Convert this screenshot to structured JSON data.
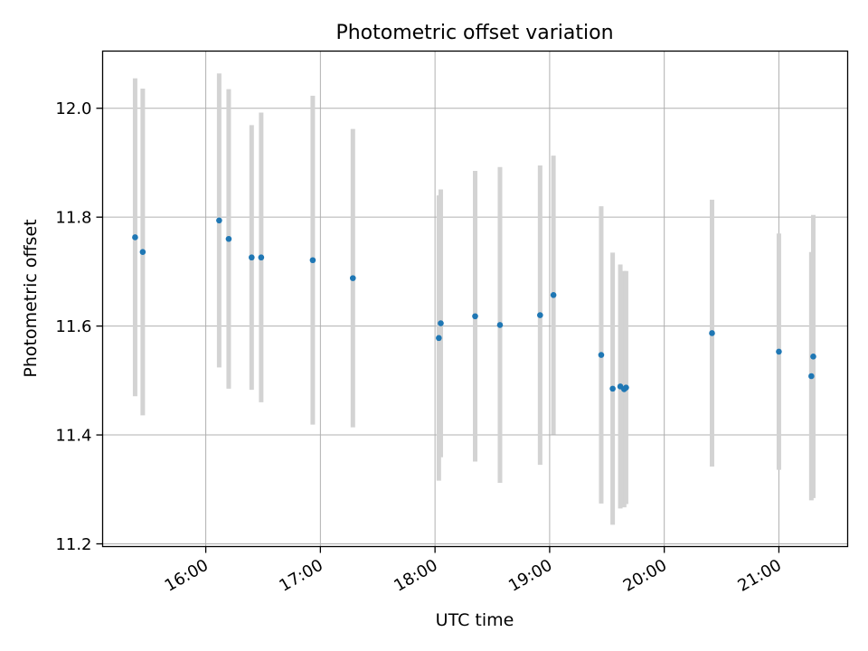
{
  "chart_data": {
    "type": "scatter",
    "title": "Photometric offset variation",
    "xlabel": "UTC time",
    "ylabel": "Photometric offset",
    "x_tick_labels": [
      "16:00",
      "17:00",
      "18:00",
      "19:00",
      "20:00",
      "21:00"
    ],
    "x_ticks": [
      "16:00",
      "17:00",
      "18:00",
      "19:00",
      "20:00",
      "21:00"
    ],
    "xlim": [
      "15:06",
      "21:36"
    ],
    "y_ticks": [
      11.2,
      11.4,
      11.6,
      11.8,
      12.0
    ],
    "y_tick_labels": [
      "11.2",
      "11.4",
      "11.6",
      "11.8",
      "12.0"
    ],
    "ylim": [
      11.195,
      12.105
    ],
    "grid": true,
    "colors": {
      "points": "#1f77b4",
      "errorbars": "#d3d3d3",
      "grid": "#b0b0b0"
    },
    "points": [
      {
        "x": "15:23",
        "y": 11.763,
        "err": 0.292
      },
      {
        "x": "15:27",
        "y": 11.736,
        "err": 0.3
      },
      {
        "x": "16:07",
        "y": 11.794,
        "err": 0.27
      },
      {
        "x": "16:12",
        "y": 11.76,
        "err": 0.275
      },
      {
        "x": "16:24",
        "y": 11.726,
        "err": 0.243
      },
      {
        "x": "16:29",
        "y": 11.726,
        "err": 0.266
      },
      {
        "x": "16:56",
        "y": 11.721,
        "err": 0.302
      },
      {
        "x": "17:17",
        "y": 11.688,
        "err": 0.274
      },
      {
        "x": "18:02",
        "y": 11.578,
        "err": 0.262
      },
      {
        "x": "18:03",
        "y": 11.605,
        "err": 0.246
      },
      {
        "x": "18:21",
        "y": 11.618,
        "err": 0.267
      },
      {
        "x": "18:34",
        "y": 11.602,
        "err": 0.29
      },
      {
        "x": "18:55",
        "y": 11.62,
        "err": 0.275
      },
      {
        "x": "19:02",
        "y": 11.657,
        "err": 0.256
      },
      {
        "x": "19:27",
        "y": 11.547,
        "err": 0.273
      },
      {
        "x": "19:33",
        "y": 11.485,
        "err": 0.25
      },
      {
        "x": "19:37",
        "y": 11.489,
        "err": 0.224
      },
      {
        "x": "19:39",
        "y": 11.484,
        "err": 0.217
      },
      {
        "x": "19:40",
        "y": 11.487,
        "err": 0.214
      },
      {
        "x": "20:25",
        "y": 11.587,
        "err": 0.245
      },
      {
        "x": "21:00",
        "y": 11.553,
        "err": 0.217
      },
      {
        "x": "21:17",
        "y": 11.508,
        "err": 0.228
      },
      {
        "x": "21:18",
        "y": 11.544,
        "err": 0.26
      }
    ]
  }
}
